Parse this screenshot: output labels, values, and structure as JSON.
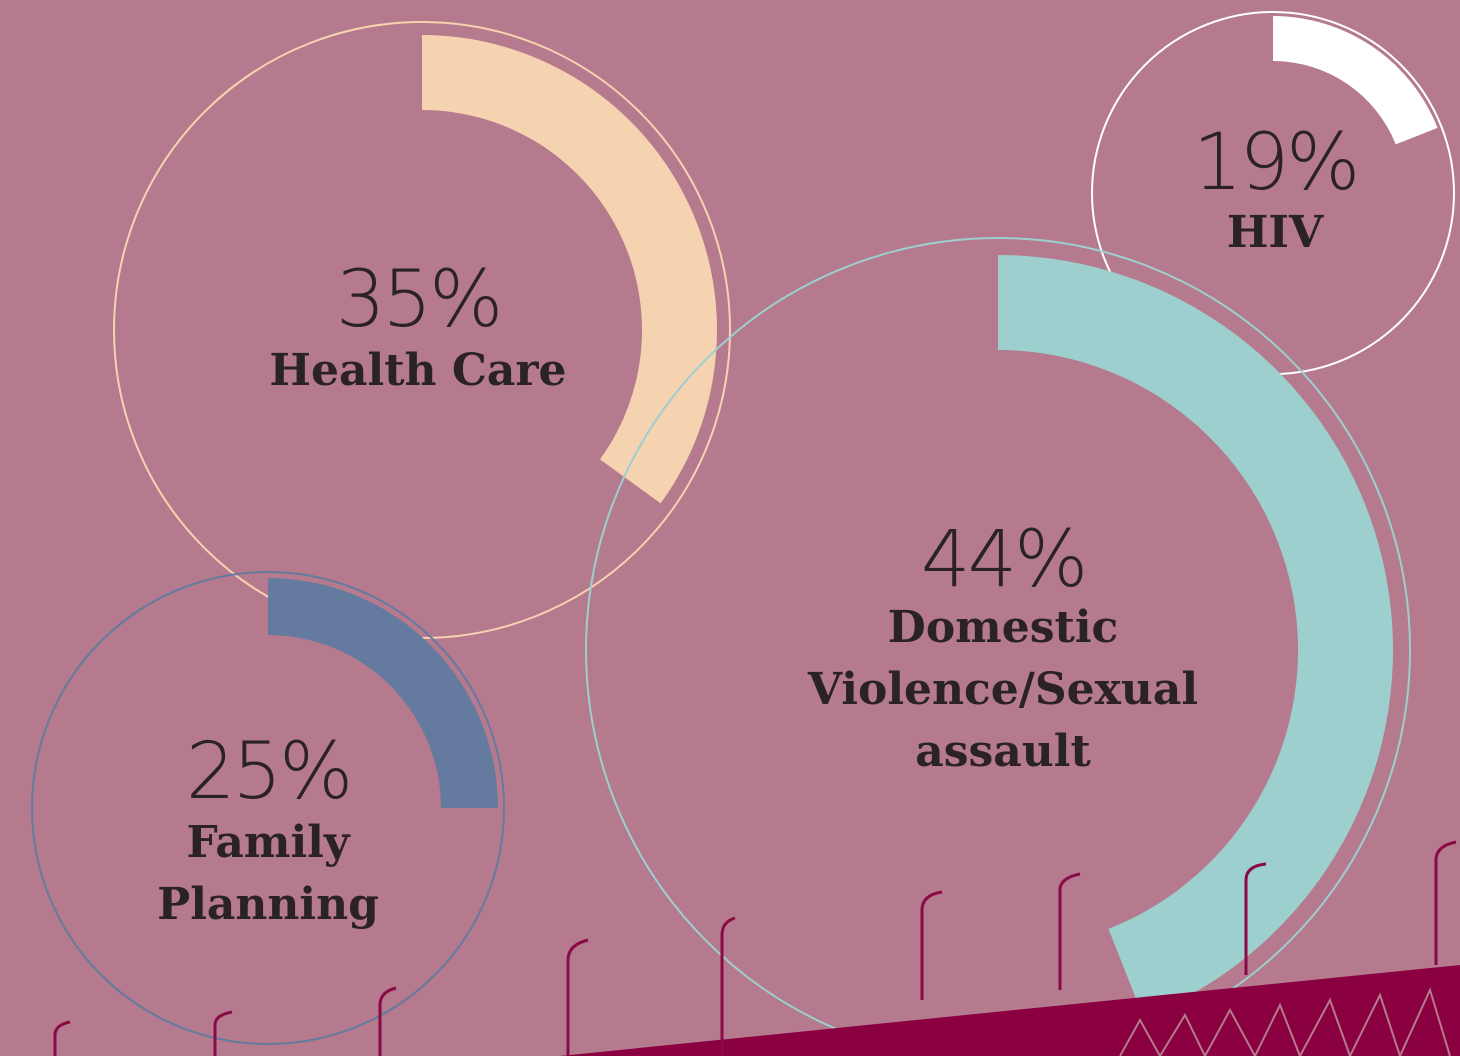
{
  "chart_data": [
    {
      "type": "donut",
      "categories": [
        "Health Care"
      ],
      "values": [
        35
      ],
      "value_labels": [
        "35%"
      ],
      "color": "#f5d3b0"
    },
    {
      "type": "donut",
      "categories": [
        "HIV"
      ],
      "values": [
        19
      ],
      "value_labels": [
        "19%"
      ],
      "color": "#ffffff"
    },
    {
      "type": "donut",
      "categories": [
        "Domestic Violence/Sexual assault"
      ],
      "values": [
        44
      ],
      "value_labels": [
        "44%"
      ],
      "color": "#9dcfcf"
    },
    {
      "type": "donut",
      "categories": [
        "Family Planning"
      ],
      "values": [
        25
      ],
      "value_labels": [
        "25%"
      ],
      "color": "#647a9e"
    }
  ]
}
